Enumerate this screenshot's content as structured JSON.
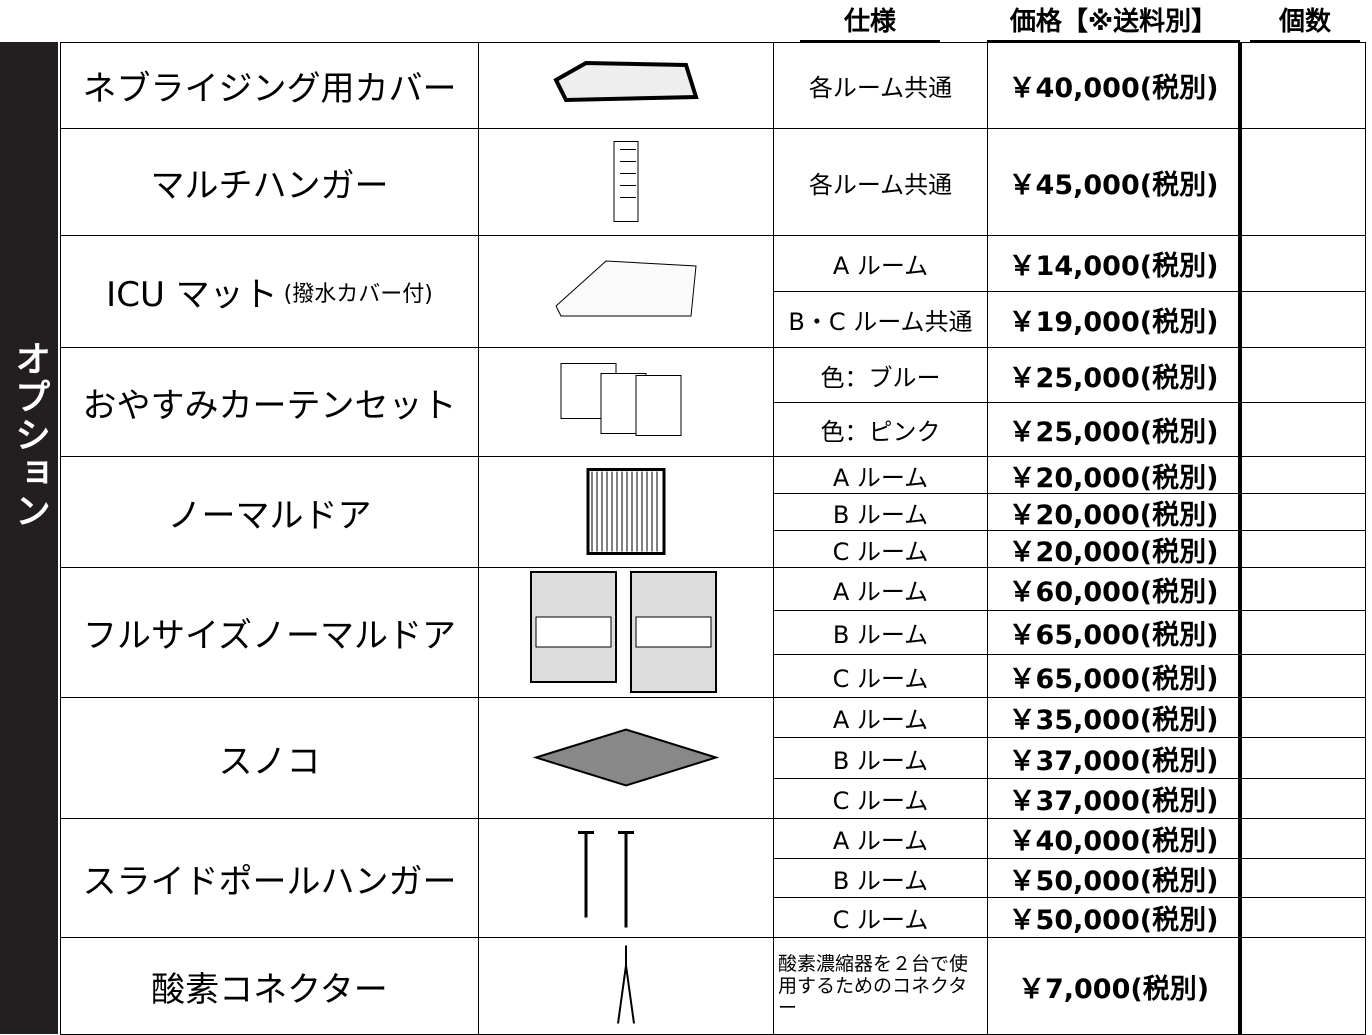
{
  "header": {
    "spec": "仕様",
    "price": "価格【※送料別】",
    "quantity": "個数"
  },
  "side_label": "オプション",
  "rows": [
    {
      "name": "ネブライジング用カバー",
      "options": [
        {
          "spec": "各ルーム共通",
          "price": "￥40,000(税別)"
        }
      ]
    },
    {
      "name": "マルチハンガー",
      "options": [
        {
          "spec": "各ルーム共通",
          "price": "￥45,000(税別)"
        }
      ]
    },
    {
      "name": "ICU マット",
      "name_note": "(撥水カバー付)",
      "options": [
        {
          "spec": "A ルーム",
          "price": "￥14,000(税別)"
        },
        {
          "spec": "B・C ルーム共通",
          "price": "￥19,000(税別)"
        }
      ]
    },
    {
      "name": "おやすみカーテンセット",
      "options": [
        {
          "spec": "色：ブルー",
          "price": "￥25,000(税別)"
        },
        {
          "spec": "色：ピンク",
          "price": "￥25,000(税別)"
        }
      ]
    },
    {
      "name": "ノーマルドア",
      "options": [
        {
          "spec": "A ルーム",
          "price": "￥20,000(税別)"
        },
        {
          "spec": "B ルーム",
          "price": "￥20,000(税別)"
        },
        {
          "spec": "C ルーム",
          "price": "￥20,000(税別)"
        }
      ]
    },
    {
      "name": "フルサイズノーマルドア",
      "options": [
        {
          "spec": "A ルーム",
          "price": "￥60,000(税別)"
        },
        {
          "spec": "B ルーム",
          "price": "￥65,000(税別)"
        },
        {
          "spec": "C ルーム",
          "price": "￥65,000(税別)"
        }
      ]
    },
    {
      "name": "スノコ",
      "options": [
        {
          "spec": "A ルーム",
          "price": "￥35,000(税別)"
        },
        {
          "spec": "B ルーム",
          "price": "￥37,000(税別)"
        },
        {
          "spec": "C ルーム",
          "price": "￥37,000(税別)"
        }
      ]
    },
    {
      "name": "スライドポールハンガー",
      "options": [
        {
          "spec": "A ルーム",
          "price": "￥40,000(税別)"
        },
        {
          "spec": "B ルーム",
          "price": "￥50,000(税別)"
        },
        {
          "spec": "C ルーム",
          "price": "￥50,000(税別)"
        }
      ]
    },
    {
      "name": "酸素コネクター",
      "options": [
        {
          "spec": "酸素濃縮器を２台で使用するためのコネクター",
          "price": "￥7,000(税別)"
        }
      ]
    }
  ]
}
